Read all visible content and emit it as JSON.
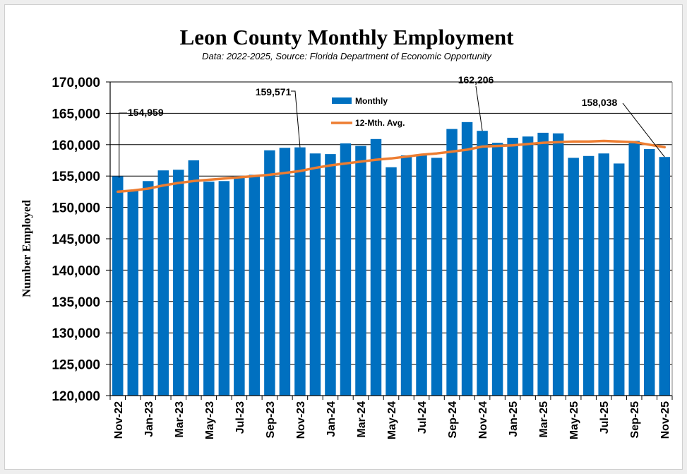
{
  "chart_data": {
    "type": "bar",
    "title": "Leon County Monthly Employment",
    "subtitle": "Data: 2022-2025, Source: Florida Department of Economic Opportunity",
    "xlabel": "",
    "ylabel": "Number Employed",
    "ylim": [
      120000,
      170000
    ],
    "ytick_step": 5000,
    "ytick_labels": [
      "120,000",
      "125,000",
      "130,000",
      "135,000",
      "140,000",
      "145,000",
      "150,000",
      "155,000",
      "160,000",
      "165,000",
      "170,000"
    ],
    "gridlines": "horizontal major",
    "legend_position": "top-center",
    "categories": [
      "Nov-22",
      "Dec-22",
      "Jan-23",
      "Feb-23",
      "Mar-23",
      "Apr-23",
      "May-23",
      "Jun-23",
      "Jul-23",
      "Aug-23",
      "Sep-23",
      "Oct-23",
      "Nov-23",
      "Dec-23",
      "Jan-24",
      "Feb-24",
      "Mar-24",
      "Apr-24",
      "May-24",
      "Jun-24",
      "Jul-24",
      "Aug-24",
      "Sep-24",
      "Oct-24",
      "Nov-24",
      "Dec-24",
      "Jan-25",
      "Feb-25",
      "Mar-25",
      "Apr-25",
      "May-25",
      "Jun-25",
      "Jul-25",
      "Aug-25",
      "Sep-25",
      "Oct-25",
      "Nov-25"
    ],
    "tick_labels": [
      "Nov-22",
      "Jan-23",
      "Mar-23",
      "May-23",
      "Jul-23",
      "Sep-23",
      "Nov-23",
      "Jan-24",
      "Mar-24",
      "May-24",
      "Jul-24",
      "Sep-24",
      "Nov-24",
      "Jan-25",
      "Mar-25",
      "May-25",
      "Jul-25",
      "Sep-25",
      "Nov-25"
    ],
    "series": [
      {
        "name": "Monthly",
        "kind": "bar",
        "color": "#0070C0",
        "values": [
          154959,
          152600,
          154200,
          155900,
          156000,
          157500,
          154100,
          154200,
          155000,
          155200,
          159100,
          159500,
          159571,
          158600,
          158500,
          160200,
          159800,
          160900,
          156400,
          158300,
          158300,
          157900,
          162500,
          163600,
          162206,
          160300,
          161100,
          161300,
          161900,
          161800,
          157900,
          158200,
          158600,
          157000,
          160600,
          159300,
          158038
        ]
      },
      {
        "name": "12-Mth. Avg.",
        "kind": "line",
        "color": "#ED7D31",
        "values": [
          152500,
          152700,
          153000,
          153500,
          153900,
          154200,
          154400,
          154600,
          154800,
          155000,
          155200,
          155500,
          155800,
          156300,
          156700,
          157000,
          157300,
          157600,
          157800,
          158100,
          158400,
          158600,
          158900,
          159200,
          159700,
          159800,
          159900,
          160100,
          160300,
          160400,
          160500,
          160500,
          160600,
          160500,
          160400,
          160000,
          159600
        ]
      }
    ],
    "annotations": [
      {
        "label": "154,959",
        "index": 0,
        "value": 154959
      },
      {
        "label": "159,571",
        "index": 12,
        "value": 159571
      },
      {
        "label": "162,206",
        "index": 24,
        "value": 162206
      },
      {
        "label": "158,038",
        "index": 36,
        "value": 158038
      }
    ]
  }
}
